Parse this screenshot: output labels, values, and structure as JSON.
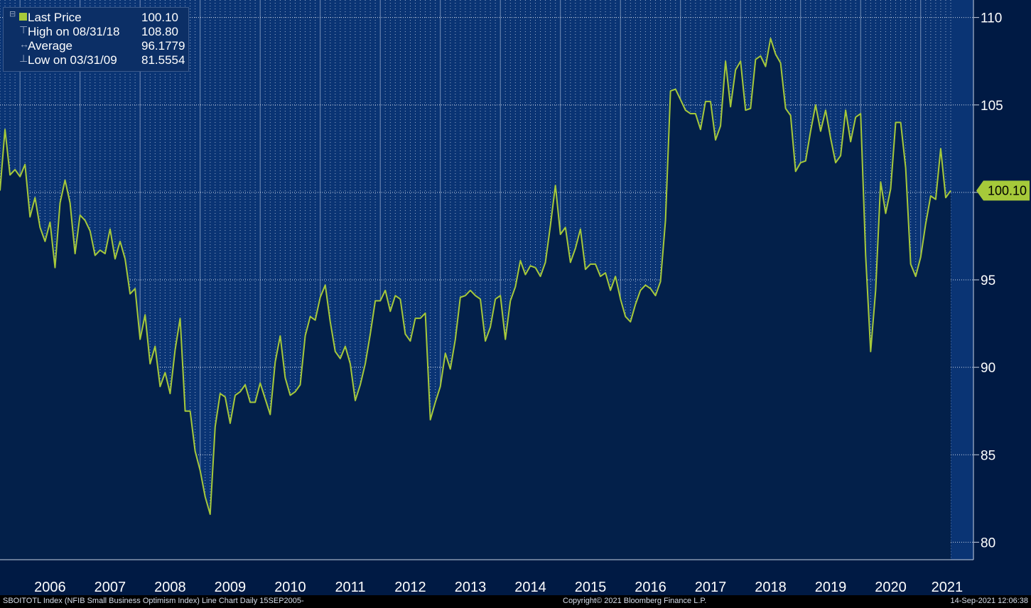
{
  "legend": {
    "last_price_label": "Last Price",
    "last_price_value": "100.10",
    "high_label": "High on 08/31/18",
    "high_value": "108.80",
    "average_label": "Average",
    "average_value": "96.1779",
    "low_label": "Low on 03/31/09",
    "low_value": "81.5554"
  },
  "footer": {
    "left": "SBOITOTL Index (NFIB Small Business Optimism Index) Line Chart  Daily 15SEP2005-",
    "center": "Copyright© 2021 Bloomberg Finance L.P.",
    "right": "14-Sep-2021 12:06:38"
  },
  "colors": {
    "background": "#0a3474",
    "plot_fill": "#03204a",
    "line": "#a6c93a",
    "axis_panel": "#001a44",
    "text": "#ffffff"
  },
  "chart_data": {
    "type": "area",
    "title": "",
    "last_price_tag": "100.10",
    "y_range": [
      79,
      111
    ],
    "y_ticks": [
      80,
      85,
      90,
      95,
      100,
      105,
      110
    ],
    "x_tick_labels": [
      "2006",
      "2007",
      "2008",
      "2009",
      "2010",
      "2011",
      "2012",
      "2013",
      "2014",
      "2015",
      "2016",
      "2017",
      "2018",
      "2019",
      "2020",
      "2021"
    ],
    "x_start_date": "2005-09",
    "x_end_date": "2021-08",
    "grid": true,
    "legend_position": "top-left",
    "series": [
      {
        "name": "Last Price",
        "values": [
          100.1,
          103.6,
          101.0,
          101.3,
          100.9,
          101.6,
          98.6,
          99.7,
          98.0,
          97.2,
          98.3,
          95.7,
          99.4,
          100.7,
          99.4,
          96.5,
          98.7,
          98.4,
          97.8,
          96.4,
          96.7,
          96.5,
          97.9,
          96.2,
          97.2,
          96.2,
          94.2,
          94.5,
          91.6,
          93.0,
          90.2,
          91.2,
          88.9,
          89.7,
          88.5,
          91.0,
          92.8,
          87.5,
          87.5,
          85.2,
          84.1,
          82.6,
          81.6,
          86.6,
          88.5,
          88.3,
          86.8,
          88.4,
          88.6,
          89.0,
          88.0,
          88.0,
          89.1,
          88.2,
          87.3,
          90.3,
          91.8,
          89.4,
          88.4,
          88.6,
          89.0,
          91.8,
          92.9,
          92.7,
          94.0,
          94.7,
          92.6,
          90.9,
          90.5,
          91.2,
          90.2,
          88.1,
          89.0,
          90.2,
          91.9,
          93.8,
          93.8,
          94.4,
          93.2,
          94.1,
          93.9,
          91.9,
          91.5,
          92.8,
          92.8,
          93.1,
          87.0,
          88.0,
          88.9,
          90.8,
          89.9,
          91.6,
          94.0,
          94.1,
          94.4,
          94.1,
          93.9,
          91.5,
          92.3,
          93.9,
          94.1,
          91.6,
          93.8,
          94.6,
          96.1,
          95.3,
          95.8,
          95.7,
          95.2,
          96.0,
          98.1,
          100.4,
          97.6,
          98.0,
          96.0,
          96.8,
          97.9,
          95.6,
          95.9,
          95.9,
          95.2,
          95.4,
          94.4,
          95.2,
          93.9,
          92.9,
          92.6,
          93.6,
          94.4,
          94.7,
          94.5,
          94.1,
          94.9,
          98.4,
          105.8,
          105.9,
          105.3,
          104.7,
          104.5,
          104.5,
          103.6,
          105.2,
          105.2,
          103.0,
          103.8,
          107.5,
          104.9,
          107.0,
          107.5,
          104.7,
          104.8,
          107.6,
          107.8,
          107.2,
          108.8,
          107.9,
          107.4,
          104.8,
          104.4,
          101.2,
          101.7,
          101.8,
          103.5,
          105.0,
          103.5,
          104.7,
          103.1,
          101.7,
          102.1,
          104.7,
          102.9,
          104.3,
          104.5,
          96.4,
          90.9,
          94.4,
          100.6,
          98.8,
          100.2,
          104.0,
          104.0,
          101.4,
          95.9,
          95.2,
          96.3,
          98.2,
          99.8,
          99.6,
          102.5,
          99.7,
          100.1
        ]
      }
    ]
  }
}
